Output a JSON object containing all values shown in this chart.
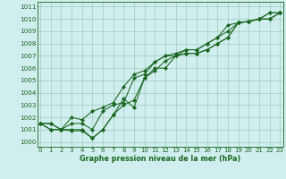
{
  "xlabel": "Graphe pression niveau de la mer (hPa)",
  "bg_color": "#d0eeee",
  "grid_color": "#a0ccbb",
  "line_color": "#1a6620",
  "ylim": [
    999.6,
    1011.4
  ],
  "xlim": [
    -0.3,
    23.3
  ],
  "yticks": [
    1000,
    1001,
    1002,
    1003,
    1004,
    1005,
    1006,
    1007,
    1008,
    1009,
    1010,
    1011
  ],
  "xticks": [
    0,
    1,
    2,
    3,
    4,
    5,
    6,
    7,
    8,
    9,
    10,
    11,
    12,
    13,
    14,
    15,
    16,
    17,
    18,
    19,
    20,
    21,
    22,
    23
  ],
  "series": [
    [
      1001.5,
      1001.5,
      1001.0,
      1001.0,
      1001.0,
      1000.3,
      1001.0,
      1002.2,
      1003.5,
      1002.8,
      1005.2,
      1006.0,
      1006.0,
      1007.0,
      1007.2,
      1007.2,
      1007.5,
      1008.0,
      1008.5,
      1009.7,
      1009.8,
      1010.0,
      1010.5,
      1010.5
    ],
    [
      1001.5,
      1001.5,
      1001.0,
      1000.9,
      1000.9,
      1000.3,
      1001.0,
      1002.2,
      1003.0,
      1003.4,
      1005.2,
      1005.8,
      1006.6,
      1007.0,
      1007.2,
      1007.2,
      1007.5,
      1008.0,
      1008.5,
      1009.7,
      1009.8,
      1010.0,
      1010.5,
      1010.5
    ],
    [
      1001.5,
      1001.0,
      1001.0,
      1001.5,
      1001.5,
      1001.0,
      1002.5,
      1003.0,
      1003.2,
      1005.2,
      1005.5,
      1006.5,
      1007.0,
      1007.0,
      1007.5,
      1007.5,
      1008.0,
      1008.5,
      1009.5,
      1009.7,
      1009.8,
      1010.0,
      1010.0,
      1010.5
    ],
    [
      1001.5,
      1001.0,
      1001.0,
      1002.0,
      1001.8,
      1002.5,
      1002.8,
      1003.2,
      1004.5,
      1005.5,
      1005.8,
      1006.5,
      1007.0,
      1007.2,
      1007.5,
      1007.5,
      1008.0,
      1008.5,
      1009.0,
      1009.7,
      1009.8,
      1010.0,
      1010.0,
      1010.5
    ]
  ],
  "ylabel_fontsize": 5.2,
  "xlabel_fontsize": 5.8,
  "tick_fontsize": 5.0,
  "marker_size": 2.2,
  "linewidth": 0.75
}
